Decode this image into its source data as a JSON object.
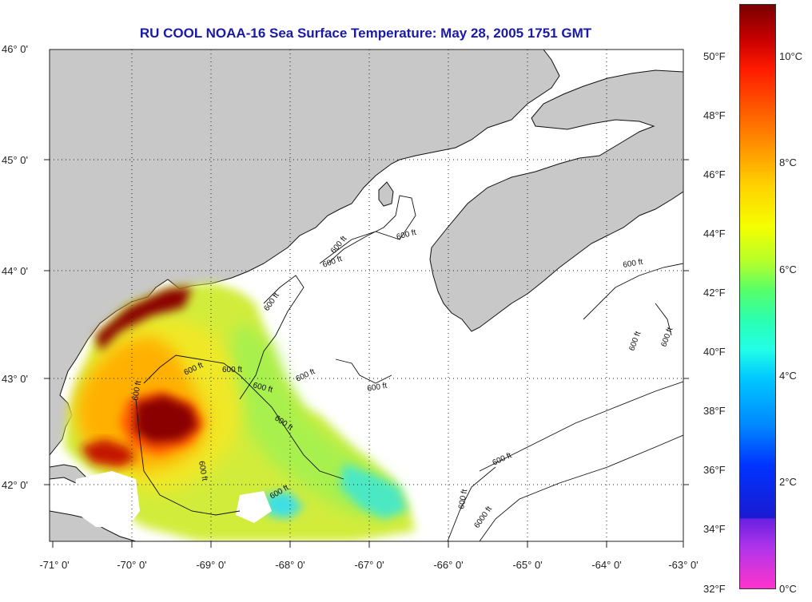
{
  "title": "RU COOL  NOAA-16  Sea Surface Temperature:  May 28, 2005 1751 GMT",
  "lat_labels": [
    "46° 0'",
    "45° 0'",
    "44° 0'",
    "43° 0'",
    "42° 0'"
  ],
  "lon_labels": [
    "-71° 0'",
    "-70° 0'",
    "-69° 0'",
    "-68° 0'",
    "-67° 0'",
    "-66° 0'",
    "-65° 0'",
    "-64° 0'",
    "-63° 0'"
  ],
  "contour_label": "600 ft",
  "contour_label_deep": "6000 ft",
  "colorbar": {
    "fahrenheit_labels": [
      "50°F",
      "48°F",
      "46°F",
      "44°F",
      "42°F",
      "40°F",
      "38°F",
      "36°F",
      "34°F",
      "32°F"
    ],
    "celsius_labels": [
      "10°C",
      "8°C",
      "6°C",
      "4°C",
      "2°C",
      "0°C"
    ]
  },
  "colors": {
    "land": "#c8c8c8",
    "ocean_no_data": "#ffffff",
    "title": "#1a1aa6"
  }
}
